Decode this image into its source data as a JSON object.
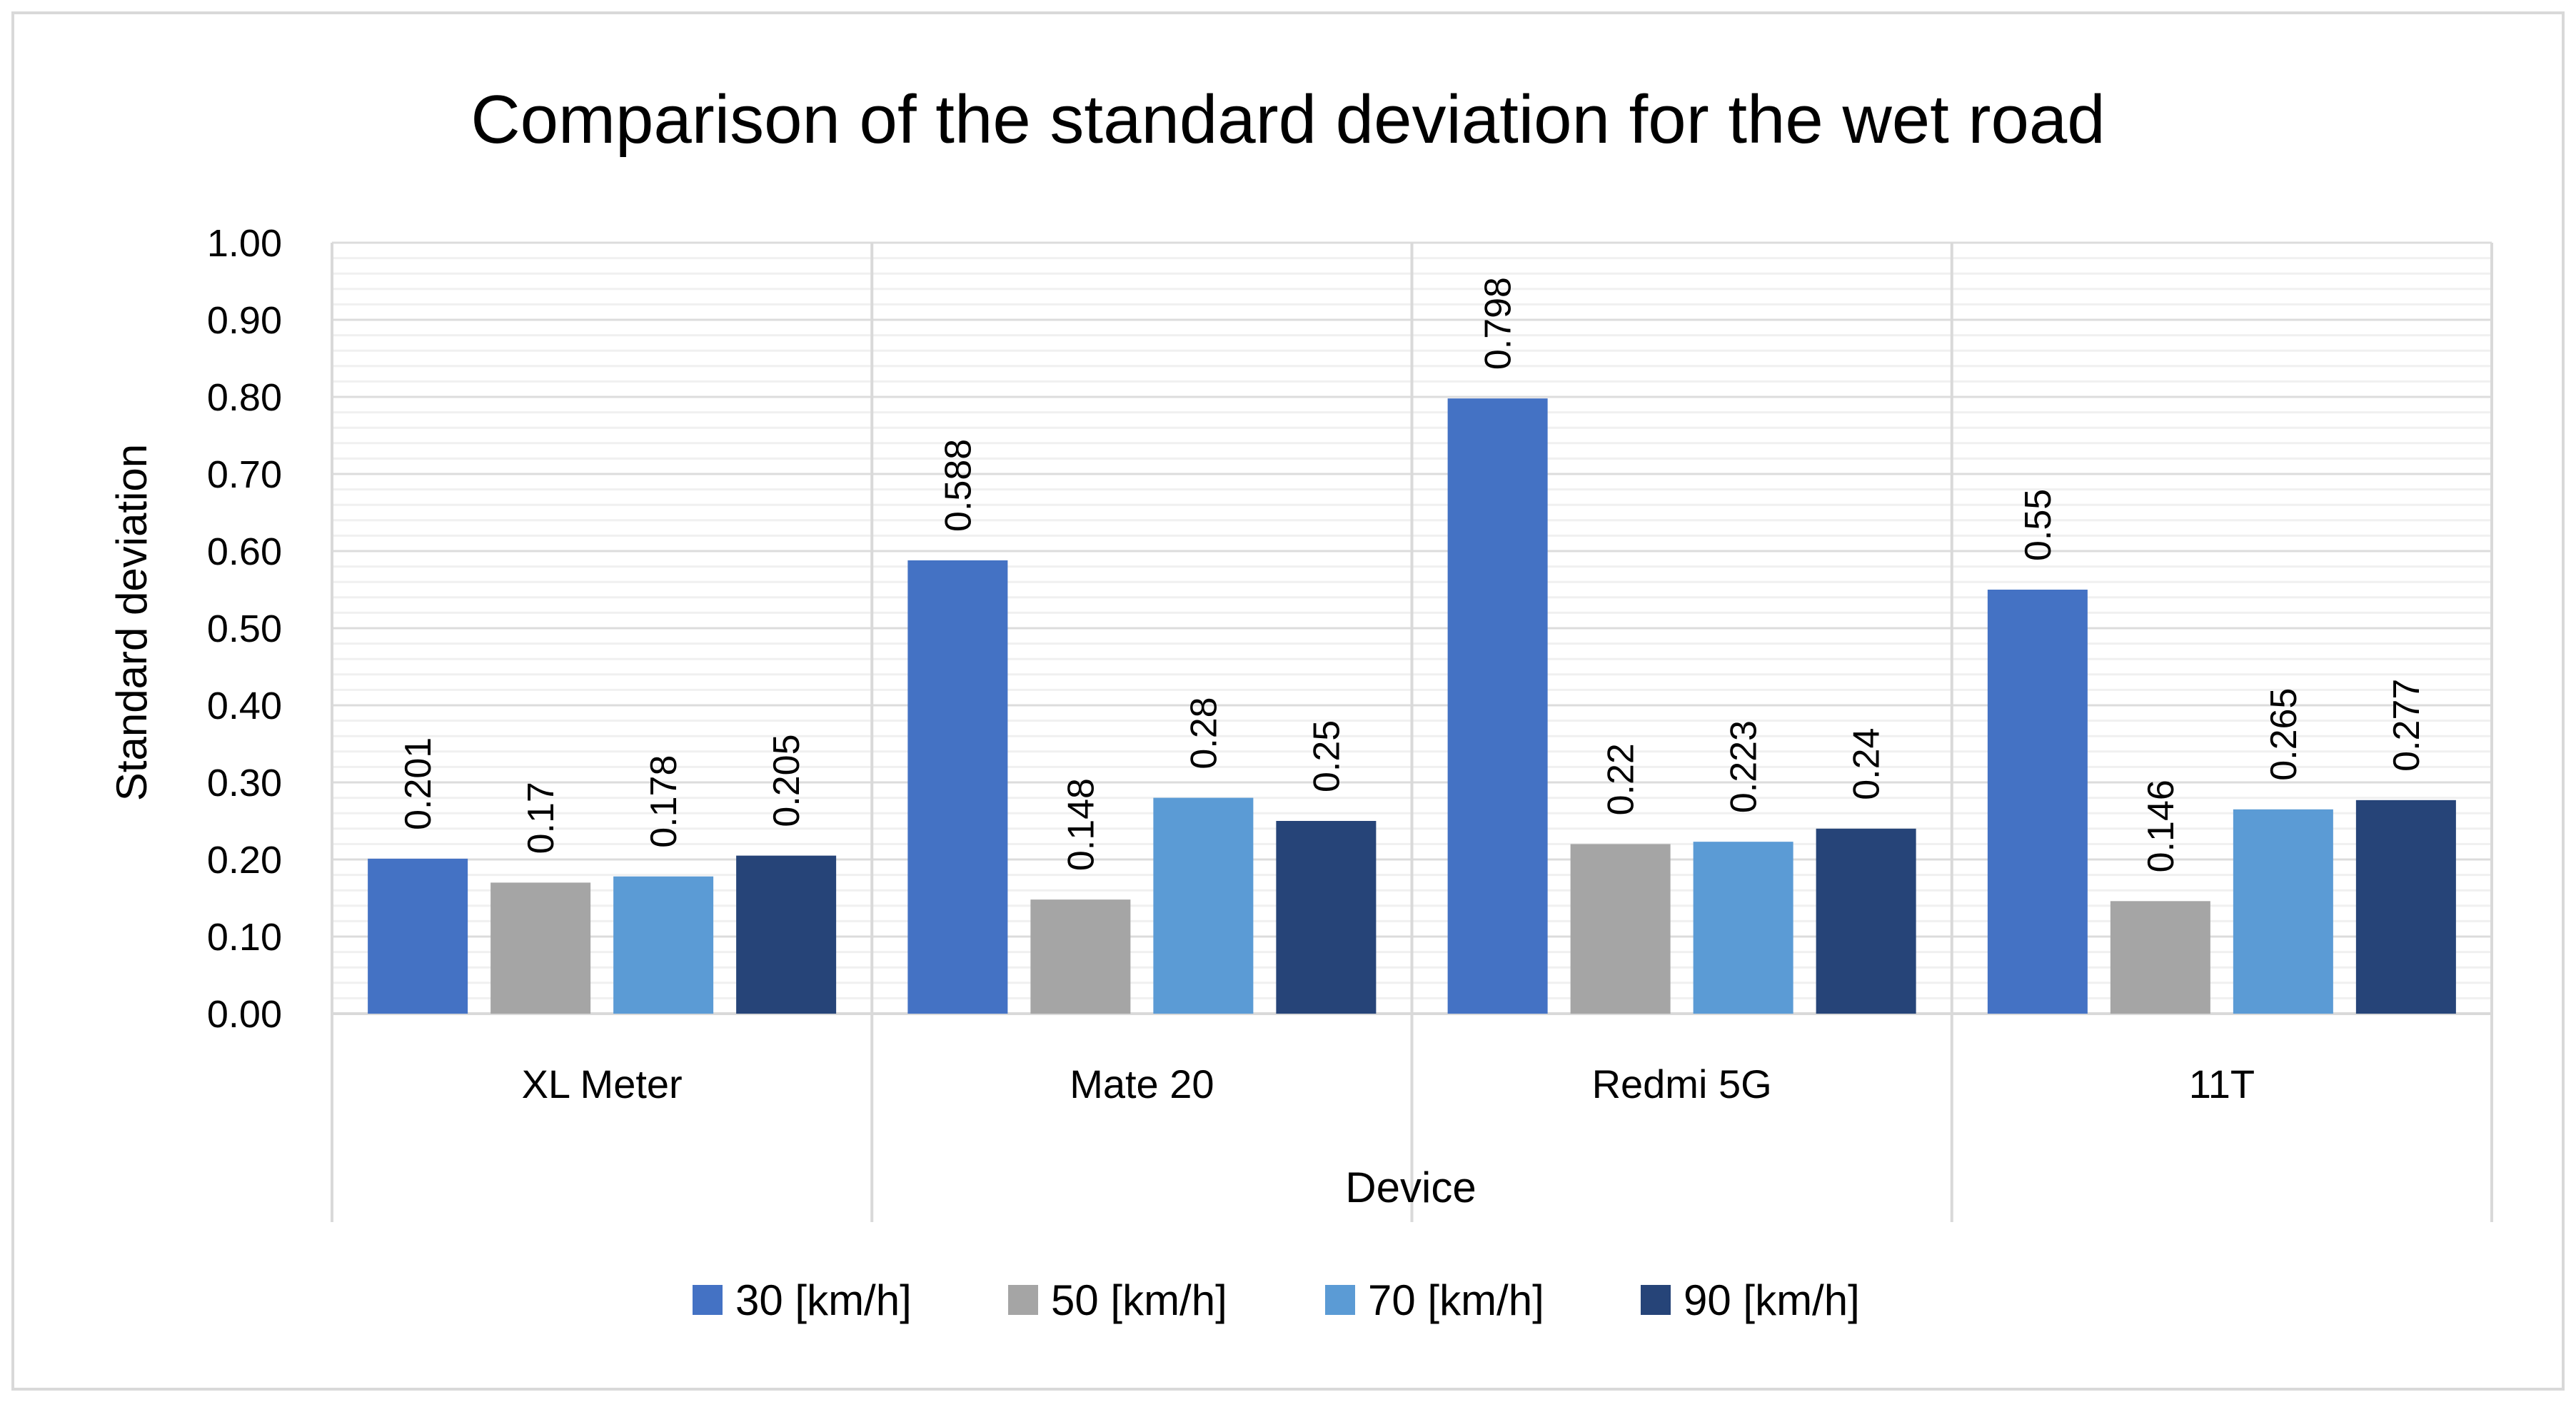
{
  "chart_data": {
    "type": "bar",
    "title": "Comparison of the standard deviation for the wet road",
    "xlabel": "Device",
    "ylabel": "Standard deviation",
    "categories": [
      "XL Meter",
      "Mate 20",
      "Redmi 5G",
      "11T"
    ],
    "ylim": [
      0,
      1.0
    ],
    "yticks": [
      "0.00",
      "0.10",
      "0.20",
      "0.30",
      "0.40",
      "0.50",
      "0.60",
      "0.70",
      "0.80",
      "0.90",
      "1.00"
    ],
    "grid": true,
    "legend_position": "bottom",
    "series": [
      {
        "name": "30 [km/h]",
        "color": "#4472C4",
        "values": [
          0.201,
          0.588,
          0.798,
          0.55
        ],
        "labels": [
          "0.201",
          "0.588",
          "0.798",
          "0.55"
        ]
      },
      {
        "name": "50 [km/h]",
        "color": "#A5A5A5",
        "values": [
          0.17,
          0.148,
          0.22,
          0.146
        ],
        "labels": [
          "0.17",
          "0.148",
          "0.22",
          "0.146"
        ]
      },
      {
        "name": "70 [km/h]",
        "color": "#5B9BD5",
        "values": [
          0.178,
          0.28,
          0.223,
          0.265
        ],
        "labels": [
          "0.178",
          "0.28",
          "0.223",
          "0.265"
        ]
      },
      {
        "name": "90 [km/h]",
        "color": "#264478",
        "values": [
          0.205,
          0.25,
          0.24,
          0.277
        ],
        "labels": [
          "0.205",
          "0.25",
          "0.24",
          "0.277"
        ]
      }
    ]
  }
}
